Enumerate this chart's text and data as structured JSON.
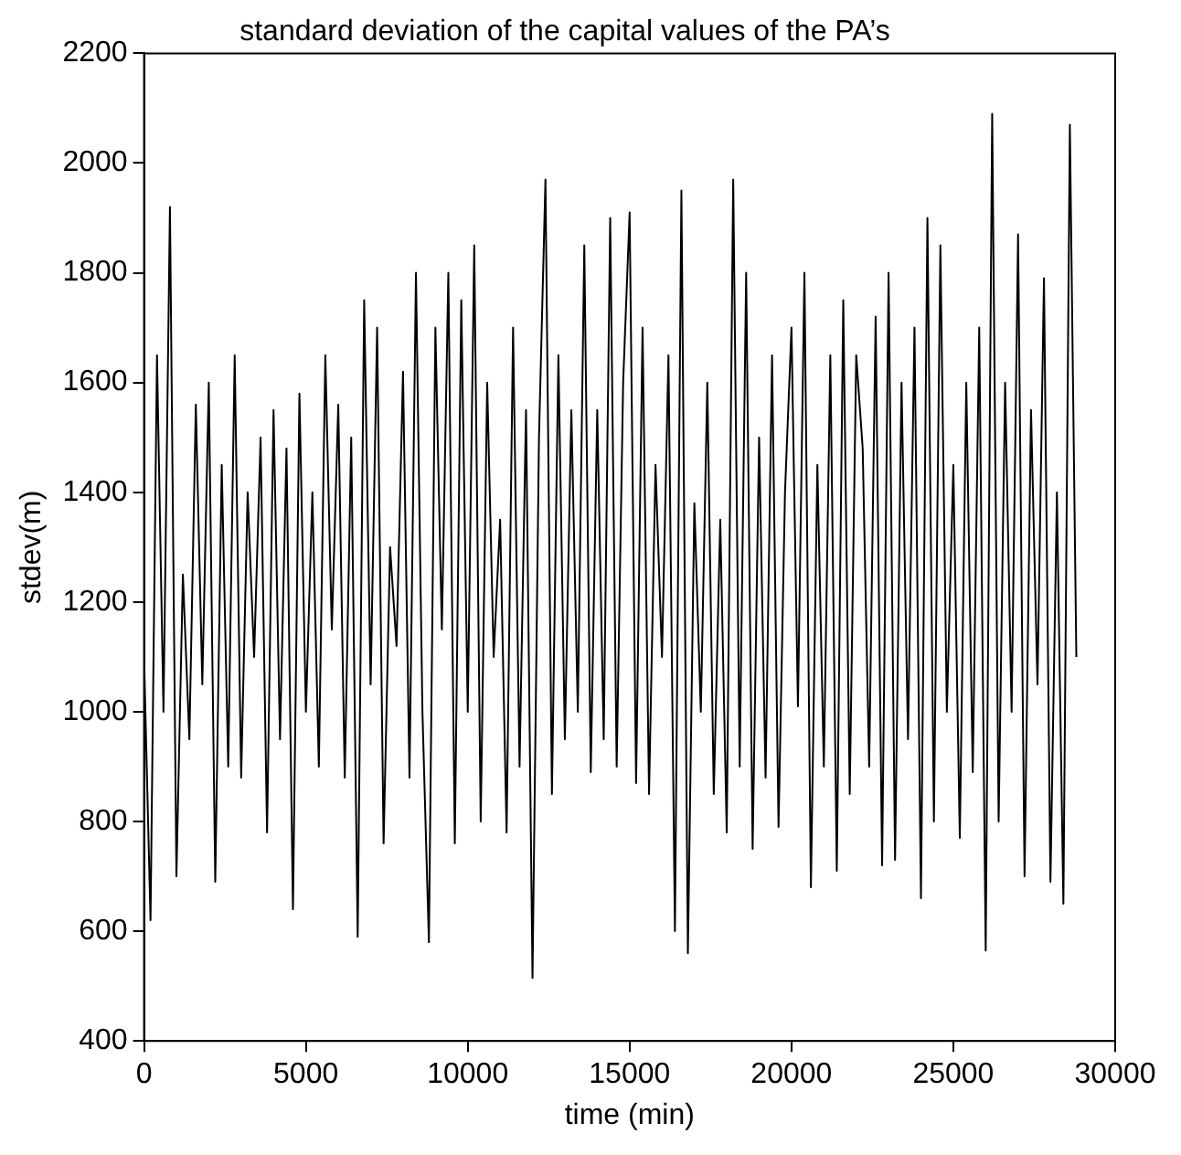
{
  "chart_data": {
    "type": "line",
    "title": "standard deviation of the capital values of the PA’s",
    "xlabel": "time (min)",
    "ylabel": "stdev(m)",
    "x": [
      0,
      200,
      400,
      600,
      800,
      1000,
      1200,
      1400,
      1600,
      1800,
      2000,
      2200,
      2400,
      2600,
      2800,
      3000,
      3200,
      3400,
      3600,
      3800,
      4000,
      4200,
      4400,
      4600,
      4800,
      5000,
      5200,
      5400,
      5600,
      5800,
      6000,
      6200,
      6400,
      6600,
      6800,
      7000,
      7200,
      7400,
      7600,
      7800,
      8000,
      8200,
      8400,
      8600,
      8800,
      9000,
      9200,
      9400,
      9600,
      9800,
      10000,
      10200,
      10400,
      10600,
      10800,
      11000,
      11200,
      11400,
      11600,
      11800,
      12000,
      12200,
      12400,
      12600,
      12800,
      13000,
      13200,
      13400,
      13600,
      13800,
      14000,
      14200,
      14400,
      14600,
      14800,
      15000,
      15200,
      15400,
      15600,
      15800,
      16000,
      16200,
      16400,
      16600,
      16800,
      17000,
      17200,
      17400,
      17600,
      17800,
      18000,
      18200,
      18400,
      18600,
      18800,
      19000,
      19200,
      19400,
      19600,
      19800,
      20000,
      20200,
      20400,
      20600,
      20800,
      21000,
      21200,
      21400,
      21600,
      21800,
      22000,
      22200,
      22400,
      22600,
      22800,
      23000,
      23200,
      23400,
      23600,
      23800,
      24000,
      24200,
      24400,
      24600,
      24800,
      25000,
      25200,
      25400,
      25600,
      25800,
      26000,
      26200,
      26400,
      26600,
      26800,
      27000,
      27200,
      27400,
      27600,
      27800,
      28000,
      28200,
      28400,
      28600,
      28800
    ],
    "series": [
      {
        "color": "#000000",
        "values": [
          1100,
          620,
          1650,
          1000,
          1920,
          700,
          1250,
          950,
          1560,
          1050,
          1600,
          690,
          1450,
          900,
          1650,
          880,
          1400,
          1100,
          1500,
          780,
          1550,
          950,
          1480,
          640,
          1580,
          1000,
          1400,
          900,
          1650,
          1150,
          1560,
          880,
          1500,
          590,
          1750,
          1050,
          1700,
          760,
          1300,
          1120,
          1620,
          880,
          1800,
          1000,
          580,
          1700,
          1150,
          1800,
          760,
          1750,
          1000,
          1850,
          800,
          1600,
          1100,
          1350,
          780,
          1700,
          900,
          1550,
          515,
          1500,
          1970,
          850,
          1650,
          950,
          1550,
          1000,
          1850,
          890,
          1550,
          950,
          1900,
          900,
          1600,
          1910,
          870,
          1700,
          850,
          1450,
          1100,
          1650,
          600,
          1950,
          560,
          1380,
          1000,
          1600,
          850,
          1350,
          780,
          1970,
          900,
          1800,
          750,
          1500,
          880,
          1650,
          790,
          1400,
          1700,
          1010,
          1800,
          680,
          1450,
          900,
          1650,
          710,
          1750,
          850,
          1650,
          1480,
          900,
          1720,
          720,
          1800,
          730,
          1600,
          950,
          1700,
          660,
          1900,
          800,
          1850,
          1000,
          1450,
          770,
          1600,
          890,
          1700,
          565,
          2090,
          800,
          1600,
          1000,
          1870,
          700,
          1550,
          1050,
          1790,
          690,
          1400,
          650,
          2070,
          1100
        ]
      }
    ],
    "xlim": [
      0,
      30000
    ],
    "xticks": [
      0,
      5000,
      10000,
      15000,
      20000,
      25000,
      30000
    ],
    "ylim": [
      400,
      2200
    ],
    "yticks": [
      400,
      600,
      800,
      1000,
      1200,
      1400,
      1600,
      1800,
      2000,
      2200
    ],
    "legend": false,
    "marker": "none",
    "line_style": "solid"
  }
}
